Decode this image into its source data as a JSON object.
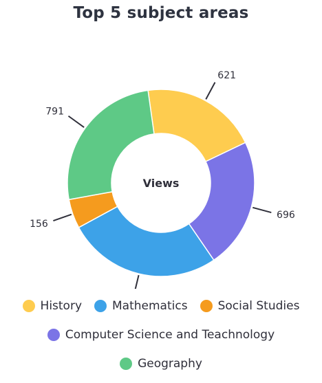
{
  "chart_data": {
    "type": "pie",
    "title": "Top 5 subject areas",
    "center_label": "Views",
    "slices": [
      {
        "label": "History",
        "value": 621,
        "color": "#FECC4F"
      },
      {
        "label": "Computer Science and Teachnology",
        "value": 696,
        "color": "#7B74E6"
      },
      {
        "label": "Mathematics",
        "value": 822,
        "color": "#3DA2E8"
      },
      {
        "label": "Social Studies",
        "value": 156,
        "color": "#F59B1E"
      },
      {
        "label": "Geography",
        "value": 791,
        "color": "#5EC986"
      }
    ],
    "legend": {
      "placement": "bottom",
      "rows": [
        [
          "History",
          "Mathematics",
          "Social Studies"
        ],
        [
          "Computer Science and Teachnology"
        ],
        [
          "Geography"
        ]
      ]
    }
  }
}
